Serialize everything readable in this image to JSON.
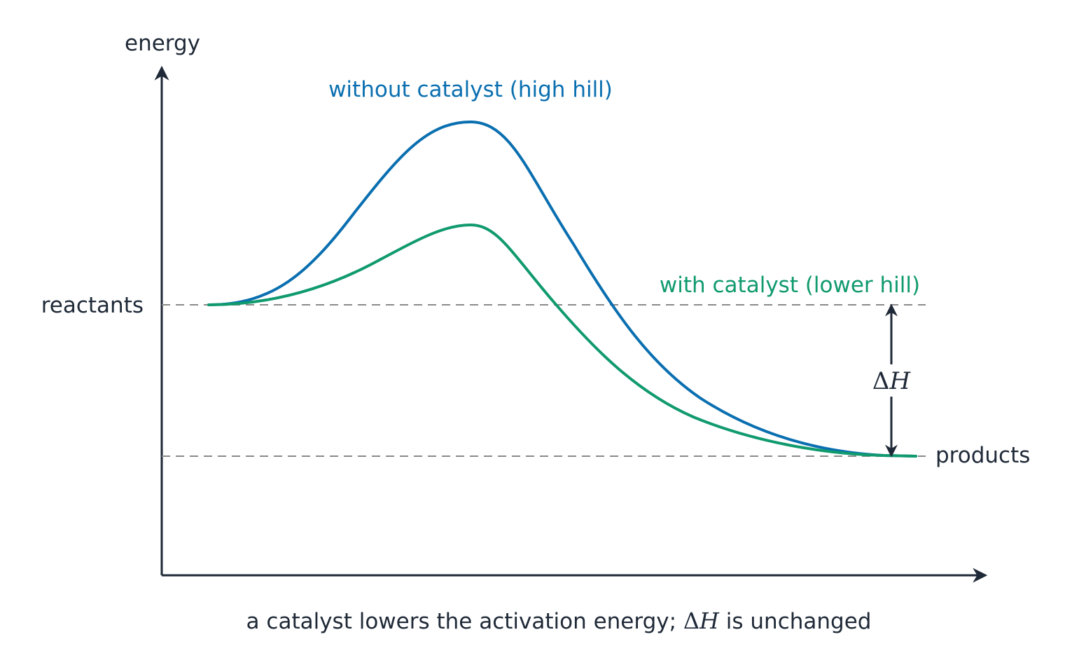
{
  "labels": {
    "y_axis": "energy",
    "reactants": "reactants",
    "products": "products",
    "without_catalyst": "without catalyst (high hill)",
    "with_catalyst": "with catalyst (lower hill)",
    "delta_h_symbol": "Δ",
    "delta_h_var": "H",
    "caption_before": "a catalyst lowers the activation energy; ",
    "caption_symbol": "Δ",
    "caption_var": "H",
    "caption_after": " is unchanged"
  },
  "colors": {
    "axis": "#1f2937",
    "text": "#1f2937",
    "without_catalyst": "#0a6fb0",
    "with_catalyst": "#109a6e",
    "reference_line": "#8a8a8a"
  },
  "chart_data": {
    "type": "line",
    "xlabel": "",
    "ylabel": "energy",
    "series": [
      {
        "name": "without catalyst (high hill)",
        "peak": "high hill"
      },
      {
        "name": "with catalyst (lower hill)",
        "peak": "lower hill"
      }
    ],
    "levels": [
      "reactants",
      "products"
    ],
    "annotation": "ΔH"
  }
}
